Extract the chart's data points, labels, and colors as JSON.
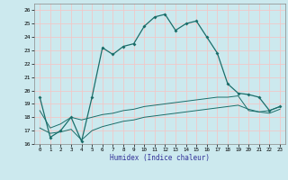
{
  "xlabel": "Humidex (Indice chaleur)",
  "xlim": [
    -0.5,
    23.5
  ],
  "ylim": [
    16,
    26.5
  ],
  "yticks": [
    16,
    17,
    18,
    19,
    20,
    21,
    22,
    23,
    24,
    25,
    26
  ],
  "xticks": [
    0,
    1,
    2,
    3,
    4,
    5,
    6,
    7,
    8,
    9,
    10,
    11,
    12,
    13,
    14,
    15,
    16,
    17,
    18,
    19,
    20,
    21,
    22,
    23
  ],
  "background_color": "#cce9ee",
  "line_color": "#1a6e6a",
  "grid_color": "#f0c8c8",
  "line1_x": [
    0,
    1,
    2,
    3,
    4,
    5,
    6,
    7,
    8,
    9,
    10,
    11,
    12,
    13,
    14,
    15,
    16,
    17,
    18,
    19,
    20,
    21,
    22,
    23
  ],
  "line1_y": [
    19.5,
    16.5,
    17.0,
    18.0,
    16.2,
    19.5,
    23.2,
    22.7,
    23.3,
    23.5,
    24.8,
    25.5,
    25.7,
    24.5,
    25.0,
    25.2,
    24.0,
    22.8,
    20.5,
    19.8,
    19.7,
    19.5,
    18.5,
    18.8
  ],
  "line2_x": [
    0,
    1,
    2,
    3,
    4,
    5,
    6,
    7,
    8,
    9,
    10,
    11,
    12,
    13,
    14,
    15,
    16,
    17,
    18,
    19,
    20,
    21,
    22,
    23
  ],
  "line2_y": [
    18.5,
    17.2,
    17.5,
    18.0,
    17.8,
    18.0,
    18.2,
    18.3,
    18.5,
    18.6,
    18.8,
    18.9,
    19.0,
    19.1,
    19.2,
    19.3,
    19.4,
    19.5,
    19.5,
    19.6,
    18.5,
    18.4,
    18.5,
    18.8
  ],
  "line3_x": [
    0,
    1,
    2,
    3,
    4,
    5,
    6,
    7,
    8,
    9,
    10,
    11,
    12,
    13,
    14,
    15,
    16,
    17,
    18,
    19,
    20,
    21,
    22,
    23
  ],
  "line3_y": [
    17.2,
    16.8,
    16.9,
    17.1,
    16.3,
    17.0,
    17.3,
    17.5,
    17.7,
    17.8,
    18.0,
    18.1,
    18.2,
    18.3,
    18.4,
    18.5,
    18.6,
    18.7,
    18.8,
    18.9,
    18.6,
    18.4,
    18.3,
    18.6
  ]
}
